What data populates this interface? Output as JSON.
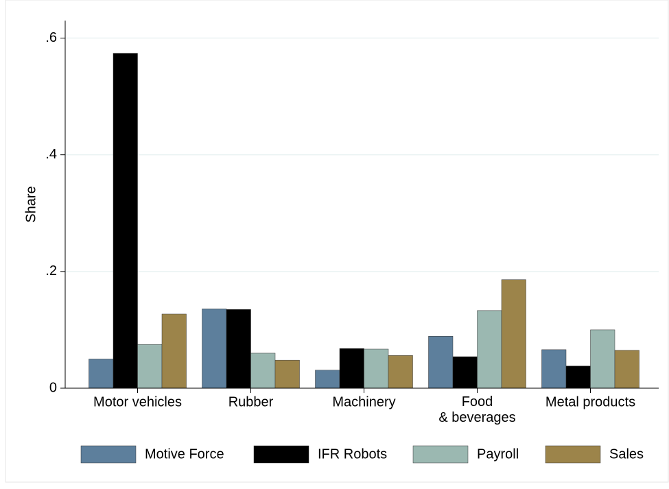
{
  "chart_data": {
    "type": "bar",
    "y_label": "Share",
    "categories": [
      "Motor vehicles",
      "Rubber",
      "Machinery",
      "Food\n& beverages",
      "Metal products"
    ],
    "series": [
      {
        "name": "Motive Force",
        "color": "#5d7f9c",
        "values": [
          0.05,
          0.136,
          0.031,
          0.089,
          0.066
        ]
      },
      {
        "name": "IFR Robots",
        "color": "#000000",
        "values": [
          0.574,
          0.135,
          0.068,
          0.054,
          0.038
        ]
      },
      {
        "name": "Payroll",
        "color": "#9bb8b1",
        "values": [
          0.075,
          0.06,
          0.067,
          0.133,
          0.1
        ]
      },
      {
        "name": "Sales",
        "color": "#9c844a",
        "values": [
          0.127,
          0.048,
          0.056,
          0.186,
          0.065
        ]
      }
    ],
    "ylim": [
      0,
      0.63
    ],
    "yticks": [
      0,
      {
        "value": 0.2,
        "label": ".2"
      },
      {
        "value": 0.4,
        "label": ".4"
      },
      {
        "value": 0.6,
        "label": ".6"
      }
    ],
    "grid": true,
    "legend": "bottom"
  }
}
